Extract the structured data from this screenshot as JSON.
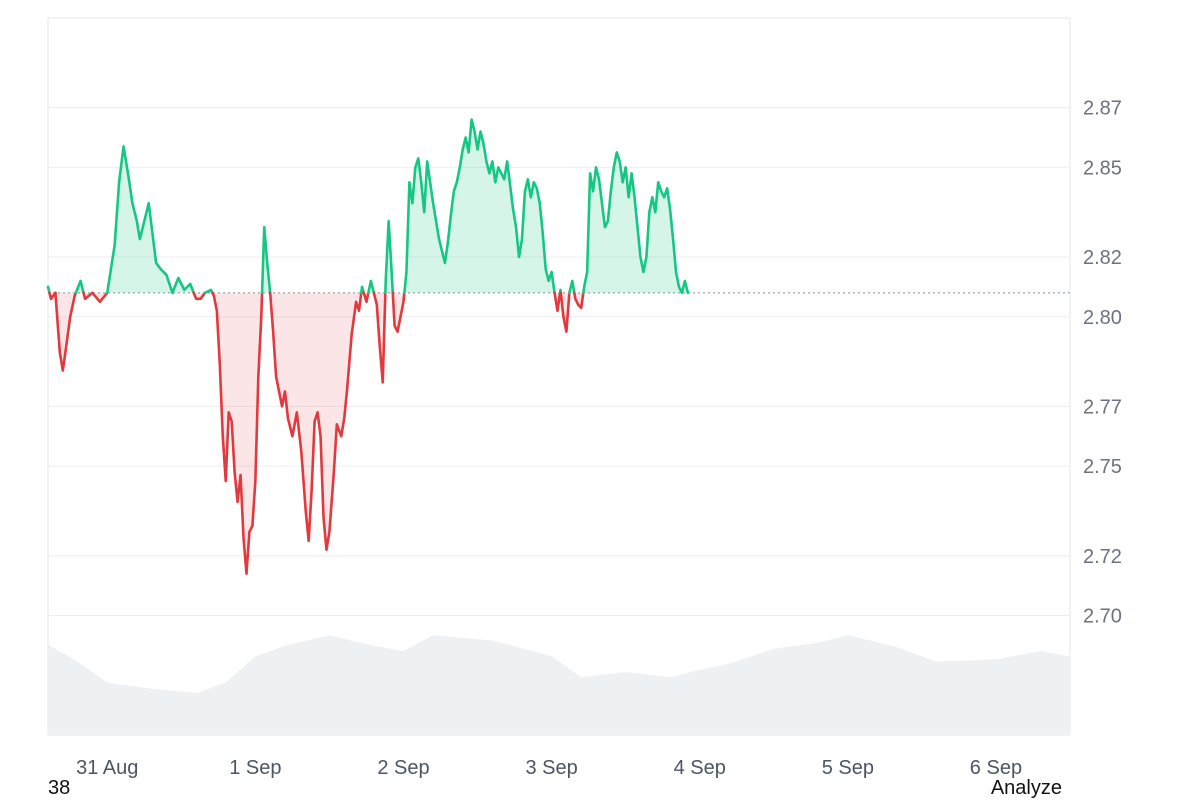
{
  "footer": {
    "left_text": "38",
    "right_text": "Analyze"
  },
  "colors": {
    "up_line": "#16c784",
    "up_fill": "rgba(22,199,132,0.18)",
    "down_line": "#e03a3e",
    "down_fill": "rgba(234,57,67,0.13)",
    "volume_fill": "#eef1f4",
    "baseline": "#9ca3af"
  },
  "chart_data": {
    "type": "area",
    "title": "",
    "xlabel": "",
    "ylabel": "",
    "baseline_value": 2.808,
    "ylim": [
      2.66,
      2.9
    ],
    "y_ticks": [
      "2.87",
      "2.85",
      "2.82",
      "2.80",
      "2.77",
      "2.75",
      "2.72",
      "2.70"
    ],
    "y_tick_values": [
      2.87,
      2.85,
      2.82,
      2.8,
      2.77,
      2.75,
      2.72,
      2.7
    ],
    "x_range": [
      30.6,
      37.5
    ],
    "x_ticks": [
      "31 Aug",
      "1 Sep",
      "2 Sep",
      "3 Sep",
      "4 Sep",
      "5 Sep",
      "6 Sep"
    ],
    "x_tick_values": [
      31,
      32,
      33,
      34,
      35,
      36,
      37
    ],
    "grid": "horizontal",
    "series": [
      {
        "values": [
          [
            30.6,
            2.81
          ],
          [
            30.62,
            2.806
          ],
          [
            30.65,
            2.808
          ],
          [
            30.68,
            2.788
          ],
          [
            30.7,
            2.782
          ],
          [
            30.72,
            2.789
          ],
          [
            30.75,
            2.8
          ],
          [
            30.78,
            2.807
          ],
          [
            30.82,
            2.812
          ],
          [
            30.85,
            2.806
          ],
          [
            30.9,
            2.808
          ],
          [
            30.95,
            2.805
          ],
          [
            31.0,
            2.808
          ],
          [
            31.05,
            2.824
          ],
          [
            31.08,
            2.845
          ],
          [
            31.11,
            2.857
          ],
          [
            31.14,
            2.848
          ],
          [
            31.17,
            2.838
          ],
          [
            31.2,
            2.832
          ],
          [
            31.22,
            2.826
          ],
          [
            31.25,
            2.832
          ],
          [
            31.28,
            2.838
          ],
          [
            31.3,
            2.83
          ],
          [
            31.33,
            2.818
          ],
          [
            31.36,
            2.816
          ],
          [
            31.4,
            2.814
          ],
          [
            31.44,
            2.808
          ],
          [
            31.48,
            2.813
          ],
          [
            31.52,
            2.809
          ],
          [
            31.56,
            2.811
          ],
          [
            31.6,
            2.806
          ],
          [
            31.63,
            2.806
          ],
          [
            31.66,
            2.808
          ],
          [
            31.7,
            2.809
          ],
          [
            31.72,
            2.807
          ],
          [
            31.74,
            2.802
          ],
          [
            31.76,
            2.784
          ],
          [
            31.78,
            2.76
          ],
          [
            31.8,
            2.745
          ],
          [
            31.82,
            2.768
          ],
          [
            31.84,
            2.765
          ],
          [
            31.86,
            2.748
          ],
          [
            31.88,
            2.738
          ],
          [
            31.9,
            2.747
          ],
          [
            31.92,
            2.726
          ],
          [
            31.94,
            2.714
          ],
          [
            31.96,
            2.728
          ],
          [
            31.98,
            2.73
          ],
          [
            32.0,
            2.745
          ],
          [
            32.02,
            2.78
          ],
          [
            32.04,
            2.8
          ],
          [
            32.06,
            2.83
          ],
          [
            32.08,
            2.818
          ],
          [
            32.1,
            2.808
          ],
          [
            32.12,
            2.795
          ],
          [
            32.14,
            2.78
          ],
          [
            32.16,
            2.775
          ],
          [
            32.18,
            2.77
          ],
          [
            32.2,
            2.775
          ],
          [
            32.22,
            2.766
          ],
          [
            32.25,
            2.76
          ],
          [
            32.28,
            2.768
          ],
          [
            32.31,
            2.755
          ],
          [
            32.34,
            2.735
          ],
          [
            32.36,
            2.725
          ],
          [
            32.38,
            2.742
          ],
          [
            32.4,
            2.765
          ],
          [
            32.42,
            2.768
          ],
          [
            32.44,
            2.76
          ],
          [
            32.46,
            2.733
          ],
          [
            32.48,
            2.722
          ],
          [
            32.5,
            2.728
          ],
          [
            32.53,
            2.748
          ],
          [
            32.55,
            2.764
          ],
          [
            32.58,
            2.76
          ],
          [
            32.6,
            2.766
          ],
          [
            32.62,
            2.776
          ],
          [
            32.65,
            2.794
          ],
          [
            32.68,
            2.805
          ],
          [
            32.7,
            2.802
          ],
          [
            32.72,
            2.81
          ],
          [
            32.75,
            2.805
          ],
          [
            32.78,
            2.812
          ],
          [
            32.8,
            2.808
          ],
          [
            32.82,
            2.804
          ],
          [
            32.84,
            2.79
          ],
          [
            32.86,
            2.778
          ],
          [
            32.88,
            2.812
          ],
          [
            32.9,
            2.832
          ],
          [
            32.92,
            2.815
          ],
          [
            32.94,
            2.797
          ],
          [
            32.96,
            2.795
          ],
          [
            32.98,
            2.8
          ],
          [
            33.0,
            2.805
          ],
          [
            33.02,
            2.815
          ],
          [
            33.04,
            2.845
          ],
          [
            33.06,
            2.838
          ],
          [
            33.08,
            2.85
          ],
          [
            33.1,
            2.853
          ],
          [
            33.12,
            2.845
          ],
          [
            33.14,
            2.835
          ],
          [
            33.16,
            2.852
          ],
          [
            33.18,
            2.845
          ],
          [
            33.2,
            2.838
          ],
          [
            33.22,
            2.832
          ],
          [
            33.24,
            2.826
          ],
          [
            33.26,
            2.822
          ],
          [
            33.28,
            2.818
          ],
          [
            33.3,
            2.825
          ],
          [
            33.32,
            2.834
          ],
          [
            33.34,
            2.842
          ],
          [
            33.36,
            2.845
          ],
          [
            33.38,
            2.85
          ],
          [
            33.4,
            2.856
          ],
          [
            33.42,
            2.86
          ],
          [
            33.44,
            2.855
          ],
          [
            33.46,
            2.866
          ],
          [
            33.48,
            2.862
          ],
          [
            33.5,
            2.856
          ],
          [
            33.52,
            2.862
          ],
          [
            33.54,
            2.858
          ],
          [
            33.56,
            2.852
          ],
          [
            33.58,
            2.848
          ],
          [
            33.6,
            2.852
          ],
          [
            33.62,
            2.845
          ],
          [
            33.64,
            2.85
          ],
          [
            33.66,
            2.848
          ],
          [
            33.68,
            2.846
          ],
          [
            33.7,
            2.852
          ],
          [
            33.72,
            2.844
          ],
          [
            33.74,
            2.836
          ],
          [
            33.76,
            2.83
          ],
          [
            33.78,
            2.82
          ],
          [
            33.8,
            2.826
          ],
          [
            33.82,
            2.842
          ],
          [
            33.84,
            2.846
          ],
          [
            33.86,
            2.84
          ],
          [
            33.88,
            2.845
          ],
          [
            33.9,
            2.843
          ],
          [
            33.92,
            2.838
          ],
          [
            33.94,
            2.828
          ],
          [
            33.96,
            2.816
          ],
          [
            33.98,
            2.812
          ],
          [
            34.0,
            2.815
          ],
          [
            34.02,
            2.808
          ],
          [
            34.04,
            2.802
          ],
          [
            34.06,
            2.809
          ],
          [
            34.08,
            2.8
          ],
          [
            34.1,
            2.795
          ],
          [
            34.12,
            2.808
          ],
          [
            34.14,
            2.812
          ],
          [
            34.16,
            2.806
          ],
          [
            34.18,
            2.804
          ],
          [
            34.2,
            2.803
          ],
          [
            34.22,
            2.81
          ],
          [
            34.24,
            2.815
          ],
          [
            34.26,
            2.848
          ],
          [
            34.28,
            2.842
          ],
          [
            34.3,
            2.85
          ],
          [
            34.32,
            2.846
          ],
          [
            34.34,
            2.838
          ],
          [
            34.36,
            2.83
          ],
          [
            34.38,
            2.832
          ],
          [
            34.4,
            2.842
          ],
          [
            34.42,
            2.85
          ],
          [
            34.44,
            2.855
          ],
          [
            34.46,
            2.852
          ],
          [
            34.48,
            2.845
          ],
          [
            34.5,
            2.85
          ],
          [
            34.52,
            2.84
          ],
          [
            34.54,
            2.848
          ],
          [
            34.56,
            2.84
          ],
          [
            34.58,
            2.83
          ],
          [
            34.6,
            2.82
          ],
          [
            34.62,
            2.815
          ],
          [
            34.64,
            2.82
          ],
          [
            34.66,
            2.835
          ],
          [
            34.68,
            2.84
          ],
          [
            34.7,
            2.835
          ],
          [
            34.72,
            2.845
          ],
          [
            34.74,
            2.842
          ],
          [
            34.76,
            2.84
          ],
          [
            34.78,
            2.843
          ],
          [
            34.8,
            2.836
          ],
          [
            34.82,
            2.826
          ],
          [
            34.84,
            2.815
          ],
          [
            34.86,
            2.81
          ],
          [
            34.88,
            2.808
          ],
          [
            34.9,
            2.812
          ],
          [
            34.92,
            2.808
          ]
        ]
      }
    ],
    "volume_area": [
      [
        30.6,
        0.86
      ],
      [
        30.8,
        0.7
      ],
      [
        31.0,
        0.5
      ],
      [
        31.3,
        0.44
      ],
      [
        31.6,
        0.4
      ],
      [
        31.8,
        0.5
      ],
      [
        32.0,
        0.75
      ],
      [
        32.2,
        0.85
      ],
      [
        32.5,
        0.95
      ],
      [
        32.8,
        0.85
      ],
      [
        33.0,
        0.8
      ],
      [
        33.2,
        0.95
      ],
      [
        33.6,
        0.9
      ],
      [
        34.0,
        0.75
      ],
      [
        34.2,
        0.55
      ],
      [
        34.5,
        0.6
      ],
      [
        34.8,
        0.55
      ],
      [
        35.0,
        0.62
      ],
      [
        35.2,
        0.68
      ],
      [
        35.5,
        0.82
      ],
      [
        35.8,
        0.88
      ],
      [
        36.0,
        0.95
      ],
      [
        36.3,
        0.85
      ],
      [
        36.6,
        0.7
      ],
      [
        37.0,
        0.72
      ],
      [
        37.3,
        0.8
      ],
      [
        37.5,
        0.75
      ]
    ]
  }
}
